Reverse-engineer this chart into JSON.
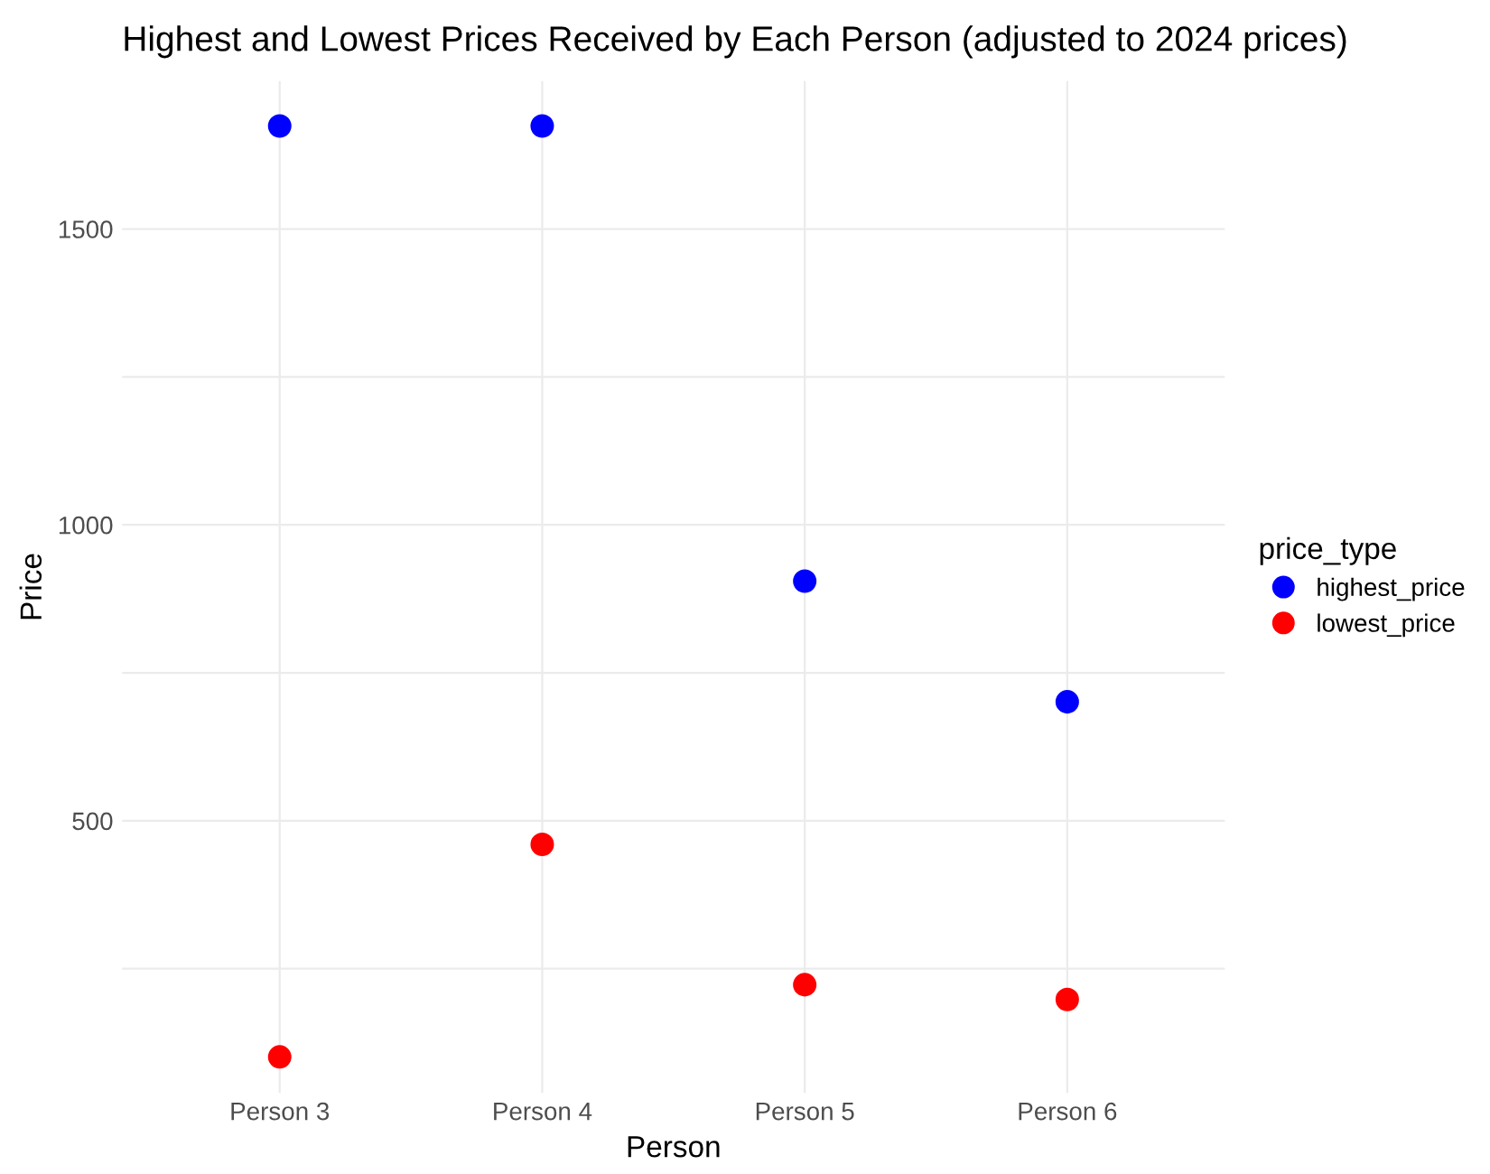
{
  "chart_data": {
    "type": "scatter",
    "title": "Highest and Lowest Prices Received by Each Person (adjusted to 2024 prices)",
    "xlabel": "Person",
    "ylabel": "Price",
    "legend_title": "price_type",
    "categories": [
      "Person 3",
      "Person 4",
      "Person 5",
      "Person 6"
    ],
    "series": [
      {
        "name": "highest_price",
        "color": "#0000ff",
        "values": [
          1674,
          1674,
          905,
          701
        ]
      },
      {
        "name": "lowest_price",
        "color": "#ff0000",
        "values": [
          101,
          460,
          223,
          198
        ]
      }
    ],
    "ylim": [
      40,
      1750
    ],
    "yticks": [
      {
        "value": 250,
        "label": null
      },
      500,
      {
        "value": 750,
        "label": null
      },
      1000,
      {
        "value": 1250,
        "label": null
      },
      1500
    ],
    "grid": true,
    "legend": "right",
    "marker": "circle"
  }
}
